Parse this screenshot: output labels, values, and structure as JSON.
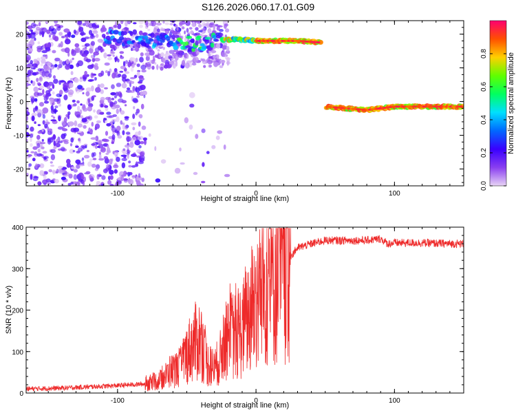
{
  "title": "S126.2026.060.17.01.G09",
  "chart_data": [
    {
      "type": "heatmap",
      "xlabel": "Height of straight line (km)",
      "ylabel": "Frequency (Hz)",
      "xlim": [
        -166,
        150
      ],
      "ylim": [
        -25,
        24
      ],
      "xticks": [
        -100,
        0,
        100
      ],
      "yticks": [
        -20,
        -10,
        0,
        10,
        20
      ],
      "colorbar": {
        "label": "Normalized spectral amplitude",
        "range": [
          0,
          1
        ],
        "ticks": [
          0.0,
          0.2,
          0.4,
          0.6,
          0.8
        ],
        "tick_labels": [
          "0.0",
          "0.2",
          "0.4",
          "0.6",
          "0.8"
        ],
        "colormap": [
          "#e8d4f5",
          "#8a3ff0",
          "#3a00ff",
          "#0068ff",
          "#00e0ff",
          "#00ff60",
          "#60ff00",
          "#ffd000",
          "#ff5000",
          "#ff0070"
        ]
      },
      "signal_track": [
        {
          "x": -110,
          "y": 19
        },
        {
          "x": -80,
          "y": 18.5
        },
        {
          "x": -50,
          "y": 17
        },
        {
          "x": -30,
          "y": 18
        },
        {
          "x": -15,
          "y": 18.5
        },
        {
          "x": 0,
          "y": 18
        },
        {
          "x": 30,
          "y": 18
        },
        {
          "x": 47,
          "y": 17.5
        },
        {
          "x": 50,
          "y": -1.5
        },
        {
          "x": 80,
          "y": -2.5
        },
        {
          "x": 100,
          "y": -1.5
        },
        {
          "x": 150,
          "y": -1.5
        }
      ],
      "noise_region": {
        "xmin": -166,
        "xmax": -80
      }
    },
    {
      "type": "line",
      "xlabel": "Height of straight line (km)",
      "ylabel": "SNR (10 * v/v)",
      "xlim": [
        -166,
        150
      ],
      "ylim": [
        0,
        400
      ],
      "xticks": [
        -100,
        0,
        100
      ],
      "yticks": [
        0,
        100,
        200,
        300,
        400
      ],
      "series": [
        {
          "name": "SNR",
          "color": "#ee2a2a",
          "x": [
            -166,
            -140,
            -120,
            -100,
            -90,
            -80,
            -70,
            -60,
            -55,
            -50,
            -45,
            -40,
            -35,
            -30,
            -25,
            -20,
            -15,
            -10,
            -5,
            0,
            5,
            10,
            15,
            20,
            25,
            30,
            40,
            50,
            60,
            70,
            80,
            85,
            90,
            95,
            100,
            110,
            120,
            130,
            140,
            150
          ],
          "y": [
            10,
            12,
            15,
            18,
            20,
            22,
            30,
            55,
            60,
            95,
            120,
            130,
            70,
            60,
            90,
            140,
            140,
            150,
            190,
            230,
            240,
            270,
            280,
            310,
            330,
            350,
            360,
            368,
            368,
            368,
            368,
            370,
            372,
            360,
            362,
            362,
            362,
            361,
            360,
            360
          ]
        }
      ]
    }
  ]
}
